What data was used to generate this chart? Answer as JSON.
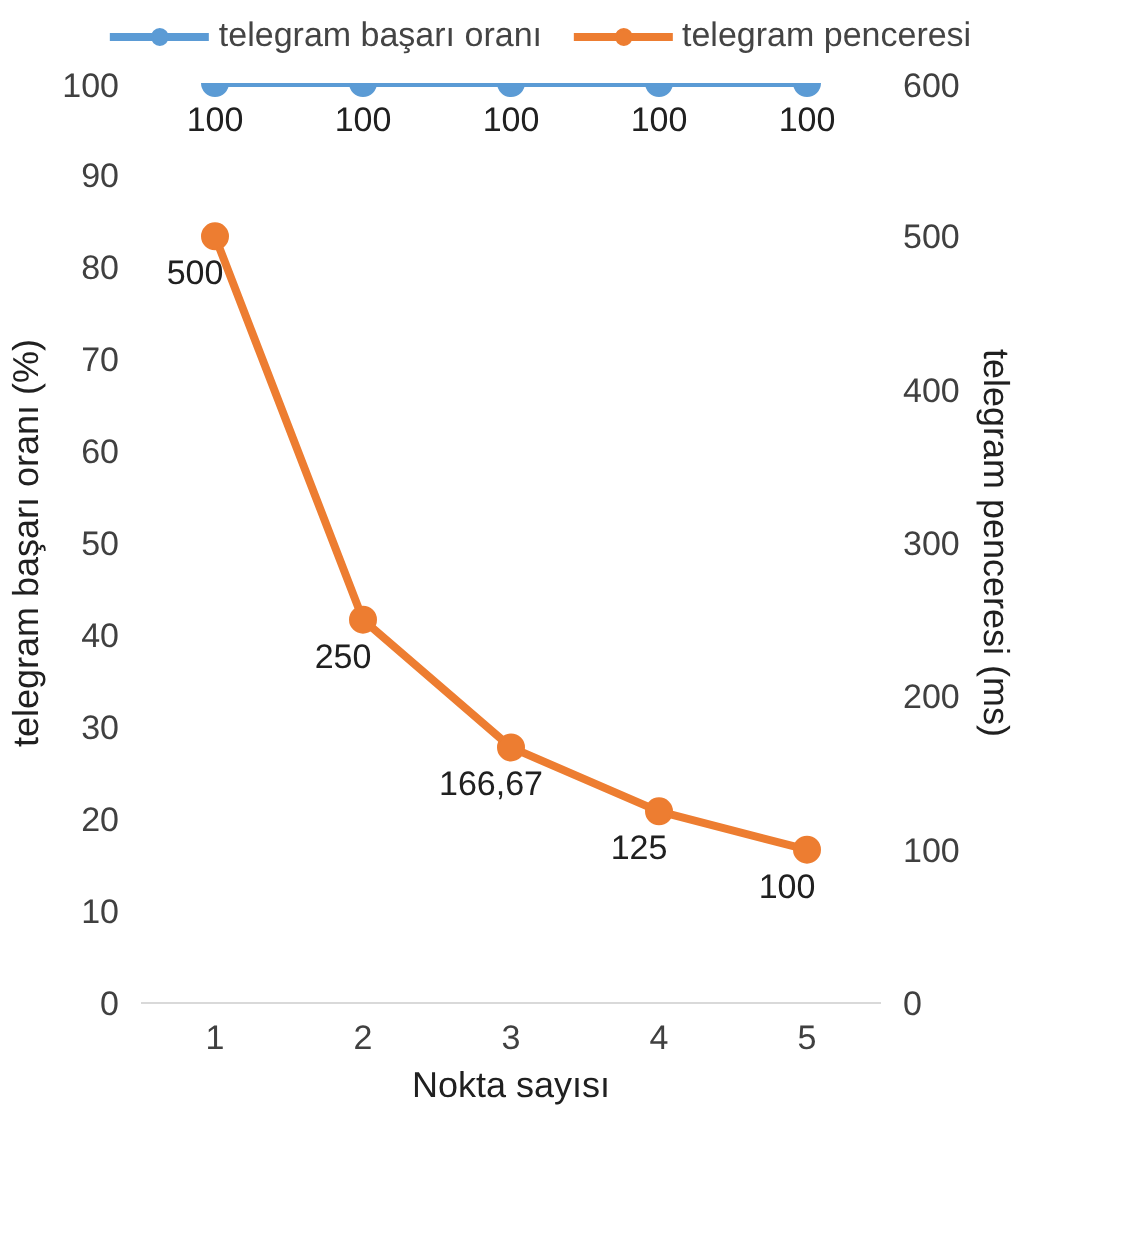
{
  "chart_data": {
    "type": "line",
    "xlabel": "Nokta sayısı",
    "ylabel": "telegram başarı oranı (%)",
    "y2label": "telegram penceresi (ms)",
    "categories": [
      "1",
      "2",
      "3",
      "4",
      "5"
    ],
    "series": [
      {
        "name": "telegram başarı oranı",
        "color": "#5b9bd5",
        "values": [
          100,
          100,
          100,
          100,
          100
        ],
        "value_labels": [
          "100",
          "100",
          "100",
          "100",
          "100"
        ]
      },
      {
        "name": "telegram penceresi",
        "color": "#ed7d31",
        "axis": "y2",
        "values": [
          500,
          250,
          166.67,
          125,
          100
        ],
        "value_labels": [
          "500",
          "250",
          "166,67",
          "125",
          "100"
        ]
      }
    ],
    "ylim": [
      0,
      100
    ],
    "yticks": [
      0,
      10,
      20,
      30,
      40,
      50,
      60,
      70,
      80,
      90,
      100
    ],
    "y2lim": [
      0,
      600
    ],
    "y2ticks": [
      0,
      100,
      200,
      300,
      400,
      500,
      600
    ],
    "marker": "circle",
    "legend": "top",
    "grid": false
  }
}
